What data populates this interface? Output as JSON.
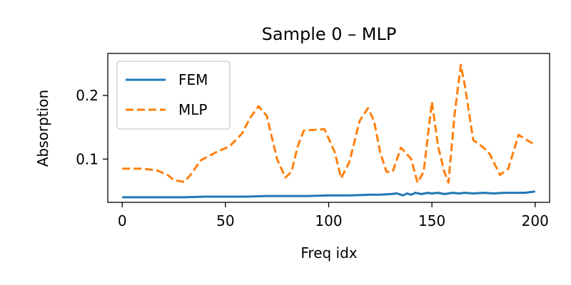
{
  "chart_data": {
    "type": "line",
    "title": "Sample 0 – MLP",
    "xlabel": "Freq idx",
    "ylabel": "Absorption",
    "xlim": [
      -7,
      207
    ],
    "ylim": [
      0.032,
      0.266
    ],
    "xticks": [
      0,
      50,
      100,
      150,
      200
    ],
    "yticks": [
      0.1,
      0.2
    ],
    "x_tick_labels": [
      "0",
      "50",
      "100",
      "150",
      "200"
    ],
    "y_tick_labels": [
      "0.1",
      "0.2"
    ],
    "grid": false,
    "legend_position": "upper-left",
    "series": [
      {
        "name": "FEM",
        "color": "#1f77b4",
        "style": "solid",
        "x": [
          0,
          10,
          20,
          30,
          40,
          50,
          60,
          70,
          80,
          90,
          100,
          110,
          120,
          125,
          130,
          133,
          136,
          138,
          140,
          142,
          145,
          148,
          150,
          153,
          156,
          160,
          163,
          166,
          170,
          175,
          180,
          185,
          190,
          195,
          200
        ],
        "y": [
          0.04,
          0.04,
          0.04,
          0.04,
          0.041,
          0.041,
          0.041,
          0.042,
          0.042,
          0.042,
          0.043,
          0.043,
          0.044,
          0.044,
          0.045,
          0.046,
          0.043,
          0.046,
          0.044,
          0.047,
          0.045,
          0.047,
          0.046,
          0.047,
          0.045,
          0.047,
          0.046,
          0.047,
          0.046,
          0.047,
          0.046,
          0.047,
          0.047,
          0.047,
          0.049
        ]
      },
      {
        "name": "MLP",
        "color": "#ff7f0e",
        "style": "dashed",
        "x": [
          0,
          10,
          17,
          22,
          25,
          30,
          33,
          38,
          45,
          52,
          58,
          62,
          66,
          70,
          75,
          79,
          82,
          85,
          88,
          93,
          98,
          103,
          106,
          110,
          115,
          119,
          122,
          125,
          128,
          131,
          135,
          140,
          143,
          146,
          150,
          153,
          156,
          158,
          161,
          164,
          166,
          170,
          175,
          178,
          183,
          187,
          192,
          195,
          200
        ],
        "y": [
          0.085,
          0.085,
          0.082,
          0.075,
          0.067,
          0.064,
          0.075,
          0.098,
          0.11,
          0.12,
          0.14,
          0.165,
          0.183,
          0.168,
          0.1,
          0.071,
          0.08,
          0.12,
          0.145,
          0.146,
          0.147,
          0.11,
          0.07,
          0.095,
          0.16,
          0.18,
          0.16,
          0.11,
          0.08,
          0.08,
          0.118,
          0.1,
          0.063,
          0.08,
          0.19,
          0.12,
          0.08,
          0.063,
          0.17,
          0.248,
          0.215,
          0.13,
          0.118,
          0.108,
          0.075,
          0.085,
          0.138,
          0.132,
          0.122
        ]
      }
    ]
  }
}
